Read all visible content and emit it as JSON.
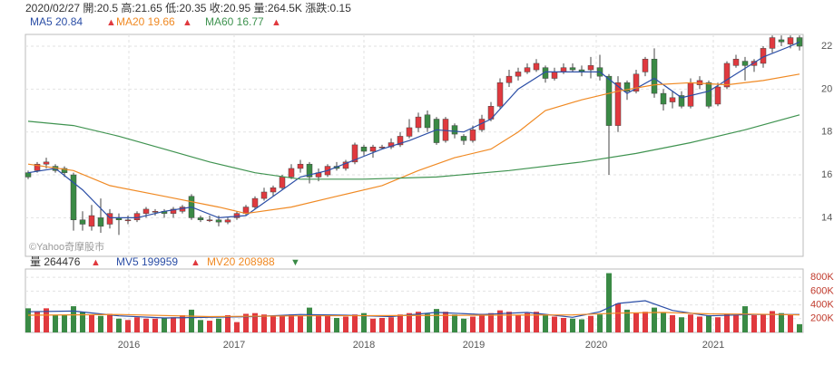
{
  "chart_data": {
    "type": "candlestick",
    "header": "2020/02/27 開:20.5 高:21.65 低:20.35 收:20.95 量:264.5K 漲跌:0.15",
    "watermark": "©Yahoo奇摩股市",
    "up_color": "#e0393e",
    "down_color": "#3a8a45",
    "xlim": [
      -0.3,
      85.4
    ],
    "xticks": [
      {
        "value": 11.1,
        "label": "2016"
      },
      {
        "value": 22.7,
        "label": "2017"
      },
      {
        "value": 37,
        "label": "2018"
      },
      {
        "value": 49.1,
        "label": "2019"
      },
      {
        "value": 62.6,
        "label": "2020"
      },
      {
        "value": 75.5,
        "label": "2021"
      }
    ],
    "ylim": [
      12.2,
      22.55
    ],
    "yticks": [
      14,
      16,
      18,
      20,
      22
    ],
    "open": [
      16.1,
      16.2,
      16.5,
      16.4,
      16.3,
      16.0,
      13.9,
      13.6,
      14.0,
      13.7,
      14.0,
      13.9,
      13.9,
      14.2,
      14.3,
      14.3,
      14.2,
      14.3,
      15.0,
      14.0,
      13.9,
      13.9,
      13.8,
      14.0,
      14.2,
      14.5,
      14.9,
      15.2,
      15.4,
      15.9,
      16.3,
      16.5,
      15.9,
      16.0,
      16.4,
      16.3,
      16.6,
      17.3,
      17.1,
      17.3,
      17.3,
      17.4,
      17.8,
      18.2,
      18.8,
      18.6,
      17.6,
      18.3,
      17.8,
      17.6,
      18.1,
      18.6,
      19.2,
      20.3,
      20.6,
      20.8,
      20.9,
      21.0,
      20.5,
      20.8,
      21.0,
      20.9,
      20.9,
      21.0,
      20.6,
      18.3,
      20.3,
      19.9,
      20.8,
      21.4,
      19.8,
      19.4,
      19.7,
      19.2,
      20.2,
      20.3,
      19.3,
      20.1,
      21.1,
      21.3,
      21.1,
      21.2,
      21.9,
      22.3,
      22.1,
      22.4
    ],
    "high": [
      16.2,
      16.6,
      16.8,
      16.5,
      16.4,
      16.1,
      14.3,
      14.6,
      14.9,
      14.4,
      14.2,
      14.1,
      14.3,
      14.5,
      14.4,
      14.4,
      14.5,
      14.6,
      15.1,
      14.1,
      14.1,
      14.1,
      14.0,
      14.3,
      14.6,
      15.0,
      15.4,
      15.5,
      16.0,
      16.5,
      16.7,
      16.6,
      16.3,
      16.5,
      16.6,
      16.7,
      17.5,
      17.4,
      17.4,
      17.4,
      17.7,
      18.0,
      18.6,
      18.9,
      19.0,
      18.7,
      18.7,
      18.4,
      17.9,
      18.3,
      18.8,
      19.4,
      20.5,
      20.9,
      21.0,
      21.2,
      21.4,
      21.1,
      21.0,
      21.2,
      21.2,
      21.1,
      21.5,
      21.6,
      20.7,
      20.6,
      20.4,
      20.9,
      21.5,
      21.9,
      20.0,
      19.9,
      19.9,
      20.5,
      20.6,
      20.4,
      20.3,
      21.3,
      21.6,
      21.5,
      21.4,
      22.0,
      22.5,
      22.5,
      22.5,
      22.5
    ],
    "low": [
      15.8,
      16.1,
      16.3,
      16.1,
      15.9,
      13.4,
      13.4,
      13.4,
      13.3,
      13.5,
      13.2,
      13.7,
      13.8,
      14.0,
      14.1,
      14.0,
      14.0,
      14.2,
      13.9,
      13.8,
      13.8,
      13.6,
      13.7,
      13.9,
      14.1,
      14.4,
      14.8,
      15.0,
      15.3,
      15.8,
      16.1,
      15.6,
      15.7,
      15.9,
      16.2,
      16.2,
      16.5,
      16.9,
      16.8,
      17.2,
      17.2,
      17.3,
      17.7,
      18.0,
      18.0,
      17.4,
      17.5,
      17.7,
      17.4,
      17.5,
      18.0,
      18.5,
      19.1,
      20.1,
      20.4,
      20.7,
      20.8,
      20.3,
      20.4,
      20.7,
      20.8,
      20.6,
      20.5,
      20.4,
      16.0,
      18.0,
      19.5,
      19.8,
      20.6,
      19.6,
      19.0,
      19.1,
      19.1,
      19.1,
      20.0,
      19.1,
      19.2,
      20.0,
      21.0,
      20.4,
      20.8,
      21.0,
      21.7,
      22.0,
      21.9,
      21.8
    ],
    "close": [
      15.9,
      16.5,
      16.6,
      16.2,
      16.1,
      13.9,
      13.7,
      14.1,
      13.6,
      14.2,
      13.9,
      13.9,
      14.2,
      14.4,
      14.3,
      14.2,
      14.4,
      14.5,
      14.0,
      13.9,
      13.9,
      13.8,
      13.9,
      14.2,
      14.5,
      14.9,
      15.2,
      15.4,
      15.9,
      16.3,
      16.5,
      15.9,
      16.1,
      16.4,
      16.3,
      16.6,
      17.4,
      17.1,
      17.3,
      17.3,
      17.5,
      17.8,
      18.2,
      18.7,
      18.2,
      17.5,
      18.6,
      17.9,
      17.6,
      18.1,
      18.6,
      19.2,
      20.3,
      20.6,
      20.8,
      21.0,
      21.2,
      20.5,
      20.8,
      21.0,
      20.9,
      20.8,
      21.1,
      20.6,
      18.3,
      20.3,
      19.9,
      20.7,
      21.4,
      19.8,
      19.3,
      19.6,
      19.2,
      20.3,
      20.4,
      19.2,
      20.1,
      21.2,
      21.4,
      21.1,
      21.3,
      21.9,
      22.4,
      22.2,
      22.4,
      22.0
    ],
    "series": [
      {
        "name": "MA5",
        "color": "#2b4ea6",
        "x": [
          0,
          3,
          6,
          9,
          12,
          15,
          18,
          21,
          24,
          27,
          30,
          33,
          36,
          39,
          42,
          45,
          48,
          51,
          54,
          57,
          60,
          63,
          66,
          69,
          72,
          75,
          78,
          81,
          84,
          85
        ],
        "values": [
          16.1,
          16.3,
          15.3,
          14.0,
          14.0,
          14.3,
          14.5,
          14.0,
          14.1,
          15.0,
          15.9,
          16.2,
          16.7,
          17.2,
          17.6,
          18.1,
          18.0,
          18.6,
          20.0,
          20.8,
          20.8,
          20.8,
          19.8,
          20.5,
          19.6,
          19.9,
          20.7,
          21.5,
          22.0,
          22.2
        ]
      },
      {
        "name": "MA20",
        "color": "#f08a24",
        "x": [
          0,
          5,
          9,
          15,
          21,
          24,
          29,
          34,
          39,
          43,
          47,
          51,
          54,
          57,
          61,
          65,
          69,
          73,
          77,
          81,
          85
        ],
        "values": [
          16.5,
          16.2,
          15.5,
          15.0,
          14.5,
          14.2,
          14.5,
          15.0,
          15.5,
          16.2,
          16.8,
          17.2,
          18.0,
          19.0,
          19.5,
          19.9,
          20.2,
          20.3,
          20.2,
          20.4,
          20.7
        ]
      },
      {
        "name": "MA60",
        "color": "#3f9350",
        "x": [
          0,
          5,
          10,
          15,
          20,
          25,
          30,
          37,
          45,
          53,
          61,
          67,
          73,
          79,
          85
        ],
        "values": [
          18.5,
          18.3,
          17.8,
          17.2,
          16.6,
          16.1,
          15.8,
          15.8,
          15.9,
          16.2,
          16.6,
          17.0,
          17.5,
          18.1,
          18.8
        ]
      }
    ],
    "legend": [
      {
        "label": "MA5 20.84",
        "color": "#2b4ea6",
        "arrow": "▲"
      },
      {
        "label": "MA20 19.66",
        "color": "#f08a24",
        "arrow": "▲"
      },
      {
        "label": "MA60 16.77",
        "color": "#3f9350",
        "arrow": "▲"
      }
    ],
    "volume": {
      "ylim": [
        0,
        920000
      ],
      "yticks": [
        {
          "value": 200000,
          "label": "200K"
        },
        {
          "value": 400000,
          "label": "400K"
        },
        {
          "value": 600000,
          "label": "600K"
        },
        {
          "value": 800000,
          "label": "800K"
        }
      ],
      "values": [
        350000,
        300000,
        350000,
        250000,
        250000,
        380000,
        300000,
        260000,
        240000,
        270000,
        200000,
        180000,
        220000,
        200000,
        200000,
        210000,
        220000,
        250000,
        330000,
        180000,
        170000,
        200000,
        250000,
        150000,
        270000,
        280000,
        260000,
        230000,
        250000,
        260000,
        240000,
        360000,
        260000,
        240000,
        210000,
        230000,
        260000,
        280000,
        200000,
        210000,
        220000,
        260000,
        280000,
        300000,
        270000,
        340000,
        300000,
        260000,
        200000,
        230000,
        270000,
        280000,
        320000,
        300000,
        250000,
        280000,
        300000,
        250000,
        230000,
        210000,
        200000,
        190000,
        240000,
        260000,
        860000,
        420000,
        330000,
        280000,
        300000,
        360000,
        290000,
        250000,
        220000,
        260000,
        230000,
        250000,
        220000,
        270000,
        250000,
        380000,
        250000,
        260000,
        310000,
        280000,
        250000,
        120000
      ],
      "series": [
        {
          "name": "MV5",
          "color": "#2b4ea6",
          "x": [
            0,
            5,
            10,
            15,
            20,
            25,
            30,
            35,
            40,
            45,
            50,
            55,
            60,
            63,
            65,
            68,
            71,
            75,
            80,
            85
          ],
          "values": [
            300000,
            310000,
            240000,
            210000,
            220000,
            230000,
            260000,
            250000,
            230000,
            290000,
            260000,
            290000,
            220000,
            300000,
            420000,
            460000,
            320000,
            240000,
            260000,
            260000
          ]
        },
        {
          "name": "MV20",
          "color": "#f08a24",
          "x": [
            0,
            10,
            20,
            30,
            40,
            50,
            60,
            65,
            70,
            75,
            80,
            85
          ],
          "values": [
            250000,
            260000,
            230000,
            240000,
            245000,
            250000,
            255000,
            280000,
            290000,
            270000,
            265000,
            255000
          ]
        }
      ],
      "legend": [
        {
          "label": "量 264476",
          "color": "#333333",
          "arrow": "▲",
          "arrow_color": "#e0393e"
        },
        {
          "label": "MV5 199959",
          "color": "#2b4ea6",
          "arrow": "▲",
          "arrow_color": "#e0393e"
        },
        {
          "label": "MV20 208988",
          "color": "#f08a24",
          "arrow": "▼",
          "arrow_color": "#3a8a45"
        }
      ]
    }
  }
}
